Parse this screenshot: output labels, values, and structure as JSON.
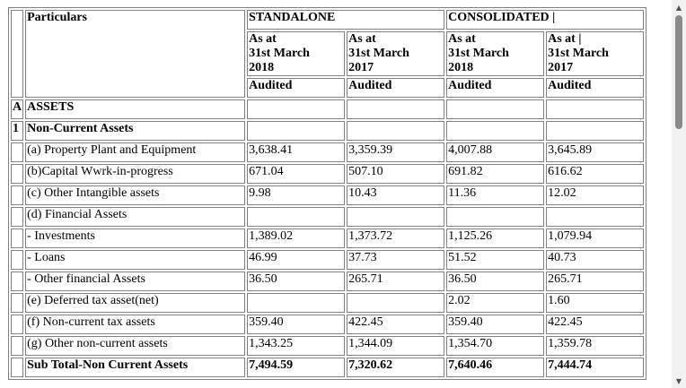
{
  "header": {
    "standalone_label": "STANDALONE",
    "consolidated_label": "CONSOLIDATED |",
    "particulars_label": "Particulars",
    "periods": [
      {
        "line1": "As at",
        "line2": "31st March",
        "line3": "2018"
      },
      {
        "line1": "As at",
        "line2": "31st March",
        "line3": "2017"
      },
      {
        "line1": "As at",
        "line2": "31st March",
        "line3": "2018"
      },
      {
        "line1": "As at |",
        "line2": "31st March",
        "line3": "2017"
      }
    ],
    "status": [
      "Audited",
      "Audited",
      "Audited",
      "Audited"
    ]
  },
  "rows": [
    {
      "idx": "A",
      "label": "ASSETS",
      "values": [
        "",
        "",
        "",
        ""
      ]
    },
    {
      "idx": "1",
      "label": "Non-Current Assets",
      "values": [
        "",
        "",
        "",
        ""
      ]
    },
    {
      "idx": "",
      "label": "(a) Property Plant and Equipment",
      "values": [
        "3,638.41",
        "3,359.39",
        "4,007.88",
        "3,645.89"
      ]
    },
    {
      "idx": "",
      "label": "(b)Capital Wwrk-in-progress",
      "values": [
        "671.04",
        "507.10",
        "691.82",
        "616.62"
      ]
    },
    {
      "idx": "",
      "label": "(c) Other Intangible assets",
      "values": [
        "9.98",
        "10.43",
        "11.36",
        "12.02"
      ]
    },
    {
      "idx": "",
      "label": "(d) Financial Assets",
      "values": [
        "",
        "",
        "",
        ""
      ]
    },
    {
      "idx": "",
      "label": "- Investments",
      "values": [
        "1,389.02",
        "1,373.72",
        "1,125.26",
        "1,079.94"
      ]
    },
    {
      "idx": "",
      "label": "- Loans",
      "values": [
        "46.99",
        "37.73",
        "51.52",
        "40.73"
      ]
    },
    {
      "idx": "",
      "label": "- Other financial Assets",
      "values": [
        "36.50",
        "265.71",
        "36.50",
        "265.71"
      ]
    },
    {
      "idx": "",
      "label": "(e) Deferred tax asset(net)",
      "values": [
        "",
        "",
        "2.02",
        "1.60"
      ]
    },
    {
      "idx": "",
      "label": "(f) Non-current tax assets",
      "values": [
        "359.40",
        "422.45",
        "359.40",
        "422.45"
      ]
    },
    {
      "idx": "",
      "label": "(g) Other non-current assets",
      "values": [
        "1,343.25",
        "1,344.09",
        "1,354.70",
        "1,359.78"
      ]
    },
    {
      "idx": "",
      "label": "Sub Total-Non Current Assets",
      "values": [
        "7,494.59",
        "7,320.62",
        "7,640.46",
        "7,444.74"
      ]
    }
  ]
}
